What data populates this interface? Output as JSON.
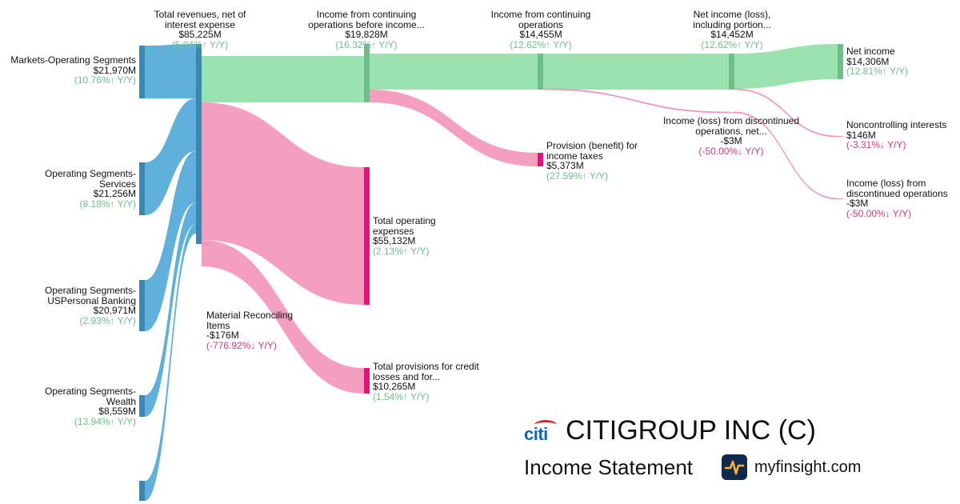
{
  "chart_data": {
    "type": "sankey",
    "title": "",
    "units": "USD millions",
    "nodes": [
      {
        "id": "markets",
        "label": "Markets-Operating Segments",
        "value": "$21,970M",
        "change": "(10.76%↑ Y/Y)",
        "trend": "up",
        "amount": 21970,
        "color": "#3a87b0"
      },
      {
        "id": "services",
        "label": "Operating Segments-Services",
        "value": "$21,256M",
        "change": "(8.18%↑ Y/Y)",
        "trend": "up",
        "amount": 21256,
        "color": "#3a87b0"
      },
      {
        "id": "uspb",
        "label": "Operating Segments-USPersonal Banking",
        "value": "$20,971M",
        "change": "(2.93%↑ Y/Y)",
        "trend": "up",
        "amount": 20971,
        "color": "#3a87b0"
      },
      {
        "id": "wealth",
        "label": "Operating Segments-Wealth",
        "value": "$8,559M",
        "change": "(13.94%↑ Y/Y)",
        "trend": "up",
        "amount": 8559,
        "color": "#3a87b0"
      },
      {
        "id": "other_seg",
        "label": "",
        "value": "",
        "change": "",
        "trend": "up",
        "amount": 4119,
        "color": "#3a87b0"
      },
      {
        "id": "revenue",
        "label": "Total revenues, net of interest expense",
        "value": "$85,225M",
        "change": "(5.04%↑ Y/Y)",
        "trend": "up",
        "amount": 85225,
        "color": "#3a87b0"
      },
      {
        "id": "mri",
        "label": "Material Reconciling Items",
        "value": "-$176M",
        "change": "(-776.92%↓ Y/Y)",
        "trend": "down",
        "amount": 176,
        "color": "#f59cbf"
      },
      {
        "id": "pretax",
        "label": "Income from continuing operations before income...",
        "value": "$19,828M",
        "change": "(16.32%↑ Y/Y)",
        "trend": "up",
        "amount": 19828,
        "color": "#6cbf8a"
      },
      {
        "id": "opex",
        "label": "Total operating expenses",
        "value": "$55,132M",
        "change": "(2.13%↑ Y/Y)",
        "trend": "up",
        "amount": 55132,
        "color": "#e8137a"
      },
      {
        "id": "provisions",
        "label": "Total provisions for credit losses and for...",
        "value": "$10,265M",
        "change": "(1.54%↑ Y/Y)",
        "trend": "up",
        "amount": 10265,
        "color": "#e8137a"
      },
      {
        "id": "cont_ops",
        "label": "Income from continuing operations",
        "value": "$14,455M",
        "change": "(12.62%↑ Y/Y)",
        "trend": "up",
        "amount": 14455,
        "color": "#6cbf8a"
      },
      {
        "id": "tax",
        "label": "Provision (benefit) for income taxes",
        "value": "$5,373M",
        "change": "(27.59%↑ Y/Y)",
        "trend": "up",
        "amount": 5373,
        "color": "#e8137a"
      },
      {
        "id": "ni_incl",
        "label": "Net income (loss), including portion...",
        "value": "$14,452M",
        "change": "(12.62%↑ Y/Y)",
        "trend": "up",
        "amount": 14452,
        "color": "#6cbf8a"
      },
      {
        "id": "disc_mid",
        "label": "Income (loss) from discontinued operations, net...",
        "value": "-$3M",
        "change": "(-50.00%↓ Y/Y)",
        "trend": "down",
        "amount": 3,
        "color": "#f59cbf"
      },
      {
        "id": "net_income",
        "label": "Net income",
        "value": "$14,306M",
        "change": "(12.81%↑ Y/Y)",
        "trend": "up",
        "amount": 14306,
        "color": "#6cbf8a"
      },
      {
        "id": "nci",
        "label": "Noncontrolling interests",
        "value": "$146M",
        "change": "(-3.31%↓ Y/Y)",
        "trend": "down",
        "amount": 146,
        "color": "#f59cbf"
      },
      {
        "id": "disc_end",
        "label": "Income (loss) from discontinued operations",
        "value": "-$3M",
        "change": "(-50.00%↓ Y/Y)",
        "trend": "down",
        "amount": 3,
        "color": "#f59cbf"
      }
    ],
    "links": [
      {
        "source": "markets",
        "target": "revenue",
        "value": 21970
      },
      {
        "source": "services",
        "target": "revenue",
        "value": 21256
      },
      {
        "source": "uspb",
        "target": "revenue",
        "value": 20971
      },
      {
        "source": "wealth",
        "target": "revenue",
        "value": 8559
      },
      {
        "source": "other_seg",
        "target": "revenue",
        "value": 4119
      },
      {
        "source": "revenue",
        "target": "pretax",
        "value": 19828
      },
      {
        "source": "revenue",
        "target": "opex",
        "value": 55132
      },
      {
        "source": "revenue",
        "target": "provisions",
        "value": 10265
      },
      {
        "source": "revenue",
        "target": "mri",
        "value": 176
      },
      {
        "source": "pretax",
        "target": "cont_ops",
        "value": 14455
      },
      {
        "source": "pretax",
        "target": "tax",
        "value": 5373
      },
      {
        "source": "cont_ops",
        "target": "ni_incl",
        "value": 14452
      },
      {
        "source": "cont_ops",
        "target": "disc_mid",
        "value": 3
      },
      {
        "source": "ni_incl",
        "target": "net_income",
        "value": 14306
      },
      {
        "source": "ni_incl",
        "target": "nci",
        "value": 146
      },
      {
        "source": "ni_incl",
        "target": "disc_end",
        "value": 3
      }
    ]
  },
  "brand": {
    "logo_text": "citi",
    "company": "CITIGROUP INC (C)",
    "subtitle": "Income Statement",
    "site": "myfinsight.com",
    "site_icon": "pulse-icon"
  }
}
